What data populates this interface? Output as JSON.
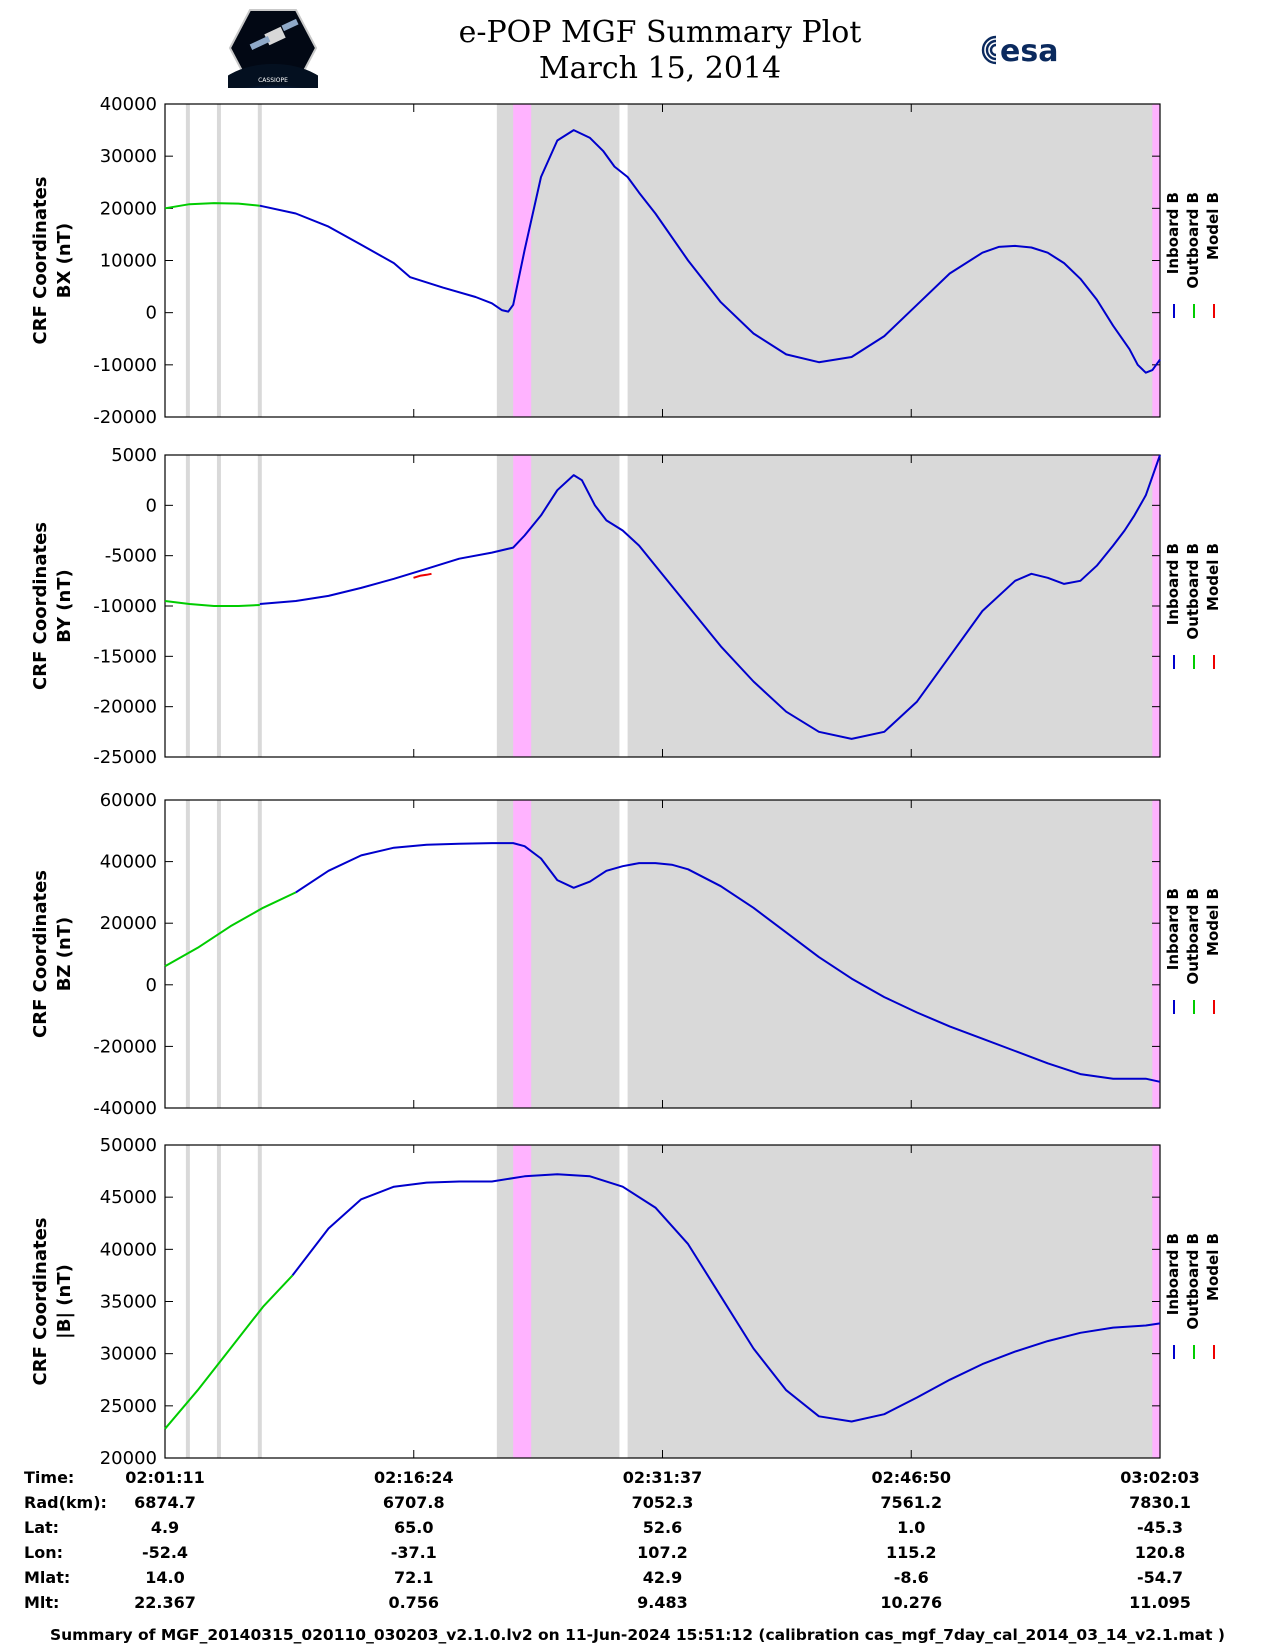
{
  "header": {
    "title": "e-POP MGF Summary Plot",
    "date": "March 15, 2014",
    "esa_logo_text": "esa",
    "cassiope_logo_text": "CASSIOPE"
  },
  "colors": {
    "inboard": "#0000cc",
    "outboard": "#00cc00",
    "model": "#ee0000",
    "gray_band": "#d9d9d9",
    "magenta_band": "#ffb3ff"
  },
  "legend": {
    "inboard": "Inboard B",
    "outboard": "Outboard B",
    "model": "Model B"
  },
  "time_axis": {
    "ticks": [
      "02:01:11",
      "02:16:24",
      "02:31:37",
      "02:46:50",
      "03:02:03"
    ],
    "tick_minutes": [
      0,
      15.217,
      30.433,
      45.65,
      60.867
    ],
    "range_minutes": [
      0,
      60.867
    ]
  },
  "shading": {
    "thin_gray_lines_min": [
      1.4,
      3.3,
      5.8
    ],
    "gray_band_min": [
      20.3,
      60.867
    ],
    "white_gaps_min": [
      [
        27.8,
        28.3
      ]
    ],
    "magenta_bands_min": [
      [
        21.3,
        22.4
      ],
      [
        60.4,
        60.867
      ]
    ]
  },
  "chart_data": [
    {
      "type": "line",
      "ylabel": "CRF Coordinates BX (nT)",
      "ylabel_line1": "CRF Coordinates",
      "ylabel_line2": "BX (nT)",
      "ylim": [
        -20000,
        40000
      ],
      "yticks": [
        40000,
        30000,
        20000,
        10000,
        0,
        -10000,
        -20000
      ],
      "series": [
        {
          "name": "Outboard B",
          "color_key": "outboard",
          "x": [
            0,
            1.5,
            3,
            4.5,
            5.8
          ],
          "values": [
            20000,
            20800,
            21000,
            20900,
            20500
          ]
        },
        {
          "name": "Inboard B",
          "color_key": "inboard",
          "x": [
            5.8,
            8,
            10,
            12,
            14,
            15,
            17,
            19,
            20,
            20.6,
            21,
            21.3,
            22,
            23,
            24,
            25,
            26,
            26.8,
            27.5,
            28.3,
            29,
            30,
            32,
            34,
            36,
            38,
            40,
            42,
            44,
            46,
            48,
            50,
            51,
            52,
            53,
            54,
            55,
            56,
            57,
            58,
            59,
            59.5,
            60,
            60.4,
            60.867
          ],
          "values": [
            20500,
            19000,
            16500,
            13000,
            9500,
            6800,
            4800,
            3000,
            1800,
            500,
            200,
            1500,
            12000,
            26000,
            33000,
            35000,
            33500,
            31000,
            28000,
            26000,
            23000,
            19000,
            10000,
            2000,
            -4000,
            -8000,
            -9500,
            -8500,
            -4500,
            1500,
            7500,
            11500,
            12600,
            12800,
            12500,
            11500,
            9500,
            6500,
            2500,
            -2500,
            -7000,
            -10000,
            -11500,
            -11000,
            -9000
          ]
        },
        {
          "name": "Model B",
          "color_key": "model",
          "x": [],
          "values": []
        }
      ]
    },
    {
      "type": "line",
      "ylabel": "CRF Coordinates BY (nT)",
      "ylabel_line1": "CRF Coordinates",
      "ylabel_line2": "BY (nT)",
      "ylim": [
        -25000,
        5000
      ],
      "yticks": [
        5000,
        0,
        -5000,
        -10000,
        -15000,
        -20000,
        -25000
      ],
      "series": [
        {
          "name": "Outboard B",
          "color_key": "outboard",
          "x": [
            0,
            1.5,
            3,
            4.5,
            5.8
          ],
          "values": [
            -9500,
            -9800,
            -10000,
            -10000,
            -9900
          ]
        },
        {
          "name": "Inboard B",
          "color_key": "inboard",
          "x": [
            5.8,
            8,
            10,
            12,
            14,
            16,
            18,
            20,
            21.3,
            22,
            23,
            24,
            25,
            25.5,
            26.3,
            27,
            28,
            29,
            30,
            32,
            34,
            36,
            38,
            40,
            42,
            44,
            46,
            48,
            50,
            52,
            53,
            54,
            55,
            56,
            57,
            58,
            58.7,
            59.3,
            60,
            60.867
          ],
          "values": [
            -9800,
            -9500,
            -9000,
            -8200,
            -7300,
            -6300,
            -5300,
            -4700,
            -4200,
            -3000,
            -1000,
            1500,
            3000,
            2500,
            0,
            -1500,
            -2500,
            -4000,
            -6000,
            -10000,
            -14000,
            -17500,
            -20500,
            -22500,
            -23200,
            -22500,
            -19500,
            -15000,
            -10500,
            -7500,
            -6800,
            -7200,
            -7800,
            -7500,
            -6000,
            -4000,
            -2500,
            -1000,
            1000,
            5000
          ]
        },
        {
          "name": "Model B",
          "color_key": "model",
          "x": [
            15.2,
            15.6,
            16.0,
            16.3
          ],
          "values": [
            -7200,
            -7000,
            -6900,
            -6800
          ]
        }
      ]
    },
    {
      "type": "line",
      "ylabel": "CRF Coordinates BZ (nT)",
      "ylabel_line1": "CRF Coordinates",
      "ylabel_line2": "BZ (nT)",
      "ylim": [
        -40000,
        60000
      ],
      "yticks": [
        60000,
        40000,
        20000,
        0,
        -20000,
        -40000
      ],
      "series": [
        {
          "name": "Outboard B",
          "color_key": "outboard",
          "x": [
            0,
            2,
            4,
            6,
            8
          ],
          "values": [
            6000,
            12000,
            19000,
            25000,
            30000
          ]
        },
        {
          "name": "Inboard B",
          "color_key": "inboard",
          "x": [
            8,
            10,
            12,
            14,
            16,
            18,
            20,
            21.3,
            22,
            23,
            24,
            25,
            26,
            27,
            28,
            29,
            30,
            31,
            32,
            34,
            36,
            38,
            40,
            42,
            44,
            46,
            48,
            50,
            52,
            54,
            56,
            58,
            59,
            60,
            60.867
          ],
          "values": [
            30000,
            37000,
            42000,
            44500,
            45500,
            45800,
            46000,
            46000,
            45000,
            41000,
            34000,
            31500,
            33500,
            37000,
            38500,
            39500,
            39500,
            39000,
            37500,
            32000,
            25000,
            17000,
            9000,
            2000,
            -4000,
            -9000,
            -13500,
            -17500,
            -21500,
            -25500,
            -29000,
            -30500,
            -30500,
            -30500,
            -31500
          ]
        },
        {
          "name": "Model B",
          "color_key": "model",
          "x": [],
          "values": []
        }
      ]
    },
    {
      "type": "line",
      "ylabel": "CRF Coordinates |B| (nT)",
      "ylabel_line1": "CRF Coordinates",
      "ylabel_line2": "|B| (nT)",
      "ylim": [
        20000,
        50000
      ],
      "yticks": [
        50000,
        45000,
        40000,
        35000,
        30000,
        25000,
        20000
      ],
      "series": [
        {
          "name": "Outboard B",
          "color_key": "outboard",
          "x": [
            0,
            2,
            4,
            6,
            7.8
          ],
          "values": [
            22800,
            26500,
            30500,
            34500,
            37500
          ]
        },
        {
          "name": "Inboard B",
          "color_key": "inboard",
          "x": [
            7.8,
            10,
            12,
            14,
            16,
            18,
            20,
            22,
            24,
            26,
            28,
            30,
            32,
            34,
            36,
            38,
            40,
            42,
            44,
            46,
            48,
            50,
            52,
            54,
            56,
            58,
            60,
            60.867
          ],
          "values": [
            37500,
            42000,
            44800,
            46000,
            46400,
            46500,
            46500,
            47000,
            47200,
            47000,
            46000,
            44000,
            40500,
            35500,
            30500,
            26500,
            24000,
            23500,
            24200,
            25800,
            27500,
            29000,
            30200,
            31200,
            32000,
            32500,
            32700,
            32900
          ]
        },
        {
          "name": "Model B",
          "color_key": "model",
          "x": [],
          "values": []
        }
      ]
    }
  ],
  "info_table": {
    "row_labels": [
      "Time:",
      "Rad(km):",
      "Lat:",
      "Lon:",
      "Mlat:",
      "Mlt:"
    ],
    "columns": [
      [
        "02:01:11",
        "6874.7",
        "4.9",
        "-52.4",
        "14.0",
        "22.367"
      ],
      [
        "02:16:24",
        "6707.8",
        "65.0",
        "-37.1",
        "72.1",
        "0.756"
      ],
      [
        "02:31:37",
        "7052.3",
        "52.6",
        "107.2",
        "42.9",
        "9.483"
      ],
      [
        "02:46:50",
        "7561.2",
        "1.0",
        "115.2",
        "-8.6",
        "10.276"
      ],
      [
        "03:02:03",
        "7830.1",
        "-45.3",
        "120.8",
        "-54.7",
        "11.095"
      ]
    ]
  },
  "footer": {
    "text": "Summary of MGF_20140315_020110_030203_v2.1.0.lv2 on 11-Jun-2024 15:51:12 (calibration cas_mgf_7day_cal_2014_03_14_v2.1.mat )"
  }
}
